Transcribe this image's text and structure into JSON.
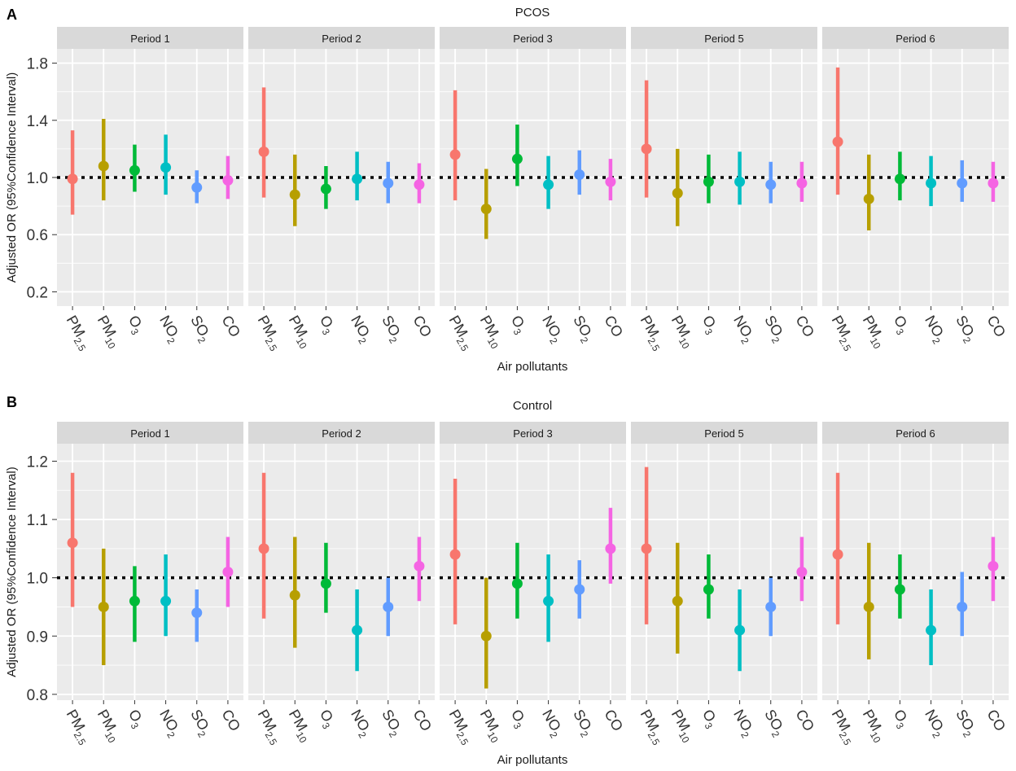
{
  "chart_data": [
    {
      "type": "scatter",
      "panel_letter": "A",
      "title": "PCOS",
      "xlabel": "Air pollutants",
      "ylabel": "Adjusted OR (95%Confidence Interval)",
      "ylim": [
        0.1,
        1.9
      ],
      "yticks": [
        "0.2",
        "0.6",
        "1.0",
        "1.4",
        "1.8"
      ],
      "ytick_values": [
        0.2,
        0.6,
        1.0,
        1.4,
        1.8
      ],
      "reference_line": 1.0,
      "categories": [
        {
          "base": "PM",
          "sub": "2.5"
        },
        {
          "base": "PM",
          "sub": "10"
        },
        {
          "base": "O",
          "sub": "3"
        },
        {
          "base": "NO",
          "sub": "2"
        },
        {
          "base": "SO",
          "sub": "2"
        },
        {
          "base": "CO",
          "sub": ""
        }
      ],
      "facets": [
        {
          "label": "Period 1",
          "estimates": [
            0.99,
            1.08,
            1.05,
            1.07,
            0.93,
            0.98
          ],
          "lower": [
            0.74,
            0.84,
            0.9,
            0.88,
            0.82,
            0.85
          ],
          "upper": [
            1.33,
            1.41,
            1.23,
            1.3,
            1.05,
            1.15
          ]
        },
        {
          "label": "Period 2",
          "estimates": [
            1.18,
            0.88,
            0.92,
            0.99,
            0.96,
            0.95
          ],
          "lower": [
            0.86,
            0.66,
            0.78,
            0.84,
            0.82,
            0.82
          ],
          "upper": [
            1.63,
            1.16,
            1.08,
            1.18,
            1.11,
            1.1
          ]
        },
        {
          "label": "Period 3",
          "estimates": [
            1.16,
            0.78,
            1.13,
            0.95,
            1.02,
            0.97
          ],
          "lower": [
            0.84,
            0.57,
            0.94,
            0.78,
            0.88,
            0.84
          ],
          "upper": [
            1.61,
            1.06,
            1.37,
            1.15,
            1.19,
            1.13
          ]
        },
        {
          "label": "Period 5",
          "estimates": [
            1.2,
            0.89,
            0.97,
            0.97,
            0.95,
            0.96
          ],
          "lower": [
            0.86,
            0.66,
            0.82,
            0.81,
            0.82,
            0.83
          ],
          "upper": [
            1.68,
            1.2,
            1.16,
            1.18,
            1.11,
            1.11
          ]
        },
        {
          "label": "Period 6",
          "estimates": [
            1.25,
            0.85,
            0.99,
            0.96,
            0.96,
            0.96
          ],
          "lower": [
            0.88,
            0.63,
            0.84,
            0.8,
            0.83,
            0.83
          ],
          "upper": [
            1.77,
            1.16,
            1.18,
            1.15,
            1.12,
            1.11
          ]
        }
      ]
    },
    {
      "type": "scatter",
      "panel_letter": "B",
      "title": "Control",
      "xlabel": "Air pollutants",
      "ylabel": "Adjusted OR (95%Confidence Interval)",
      "ylim": [
        0.79,
        1.23
      ],
      "yticks": [
        "0.8",
        "0.9",
        "1.0",
        "1.1",
        "1.2"
      ],
      "ytick_values": [
        0.8,
        0.9,
        1.0,
        1.1,
        1.2
      ],
      "reference_line": 1.0,
      "categories": [
        {
          "base": "PM",
          "sub": "2.5"
        },
        {
          "base": "PM",
          "sub": "10"
        },
        {
          "base": "O",
          "sub": "3"
        },
        {
          "base": "NO",
          "sub": "2"
        },
        {
          "base": "SO",
          "sub": "2"
        },
        {
          "base": "CO",
          "sub": ""
        }
      ],
      "facets": [
        {
          "label": "Period 1",
          "estimates": [
            1.06,
            0.95,
            0.96,
            0.96,
            0.94,
            1.01
          ],
          "lower": [
            0.95,
            0.85,
            0.89,
            0.9,
            0.89,
            0.95
          ],
          "upper": [
            1.18,
            1.05,
            1.02,
            1.04,
            0.98,
            1.07
          ]
        },
        {
          "label": "Period 2",
          "estimates": [
            1.05,
            0.97,
            0.99,
            0.91,
            0.95,
            1.02
          ],
          "lower": [
            0.93,
            0.88,
            0.94,
            0.84,
            0.9,
            0.96
          ],
          "upper": [
            1.18,
            1.07,
            1.06,
            0.98,
            1.0,
            1.07
          ]
        },
        {
          "label": "Period 3",
          "estimates": [
            1.04,
            0.9,
            0.99,
            0.96,
            0.98,
            1.05
          ],
          "lower": [
            0.92,
            0.81,
            0.93,
            0.89,
            0.93,
            0.99
          ],
          "upper": [
            1.17,
            1.0,
            1.06,
            1.04,
            1.03,
            1.12
          ]
        },
        {
          "label": "Period 5",
          "estimates": [
            1.05,
            0.96,
            0.98,
            0.91,
            0.95,
            1.01
          ],
          "lower": [
            0.92,
            0.87,
            0.93,
            0.84,
            0.9,
            0.96
          ],
          "upper": [
            1.19,
            1.06,
            1.04,
            0.98,
            1.0,
            1.07
          ]
        },
        {
          "label": "Period 6",
          "estimates": [
            1.04,
            0.95,
            0.98,
            0.91,
            0.95,
            1.02
          ],
          "lower": [
            0.92,
            0.86,
            0.93,
            0.85,
            0.9,
            0.96
          ],
          "upper": [
            1.18,
            1.06,
            1.04,
            0.98,
            1.01,
            1.07
          ]
        }
      ]
    }
  ],
  "colors": {
    "series": [
      "#f8766d",
      "#b79f00",
      "#00ba38",
      "#00bfc4",
      "#619cff",
      "#f564e3"
    ],
    "panel_background": "#ebebeb",
    "strip_background": "#d9d9d9",
    "grid": "#ffffff",
    "reference_line": "#000000",
    "text": "#1a1a1a"
  }
}
